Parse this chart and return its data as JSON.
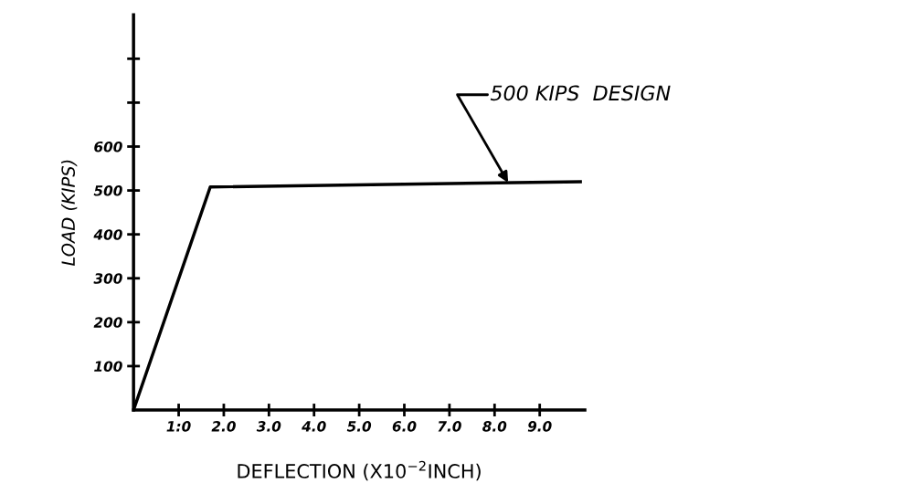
{
  "chart_data": {
    "type": "line",
    "xlabel": "DEFLECTION (X10$^{−2}$INCH)",
    "ylabel": "LOAD (KIPS)",
    "x": [
      0,
      1.7,
      9.9
    ],
    "series": [
      {
        "color": "#000000",
        "values": [
          0,
          508,
          520
        ]
      }
    ],
    "xlim": [
      0,
      10
    ],
    "xticks": [
      {
        "value": 1,
        "label": "1:0"
      },
      {
        "value": 2,
        "label": "2.0"
      },
      {
        "value": 3,
        "label": "3.0"
      },
      {
        "value": 4,
        "label": "4.0"
      },
      {
        "value": 5,
        "label": "5.0"
      },
      {
        "value": 6,
        "label": "6.0"
      },
      {
        "value": 7,
        "label": "7.0"
      },
      {
        "value": 8,
        "label": "8.0"
      },
      {
        "value": 9,
        "label": "9.0"
      }
    ],
    "ylim": [
      0,
      900
    ],
    "yticks": [
      100,
      200,
      300,
      400,
      500,
      600,
      {
        "value": 700,
        "label": null
      },
      {
        "value": 800,
        "label": null
      }
    ],
    "annotations": [
      {
        "text": "500 KIPS  DESIGN",
        "x": 8.3,
        "y": 518
      }
    ],
    "marker": "none",
    "line_style": "solid"
  }
}
